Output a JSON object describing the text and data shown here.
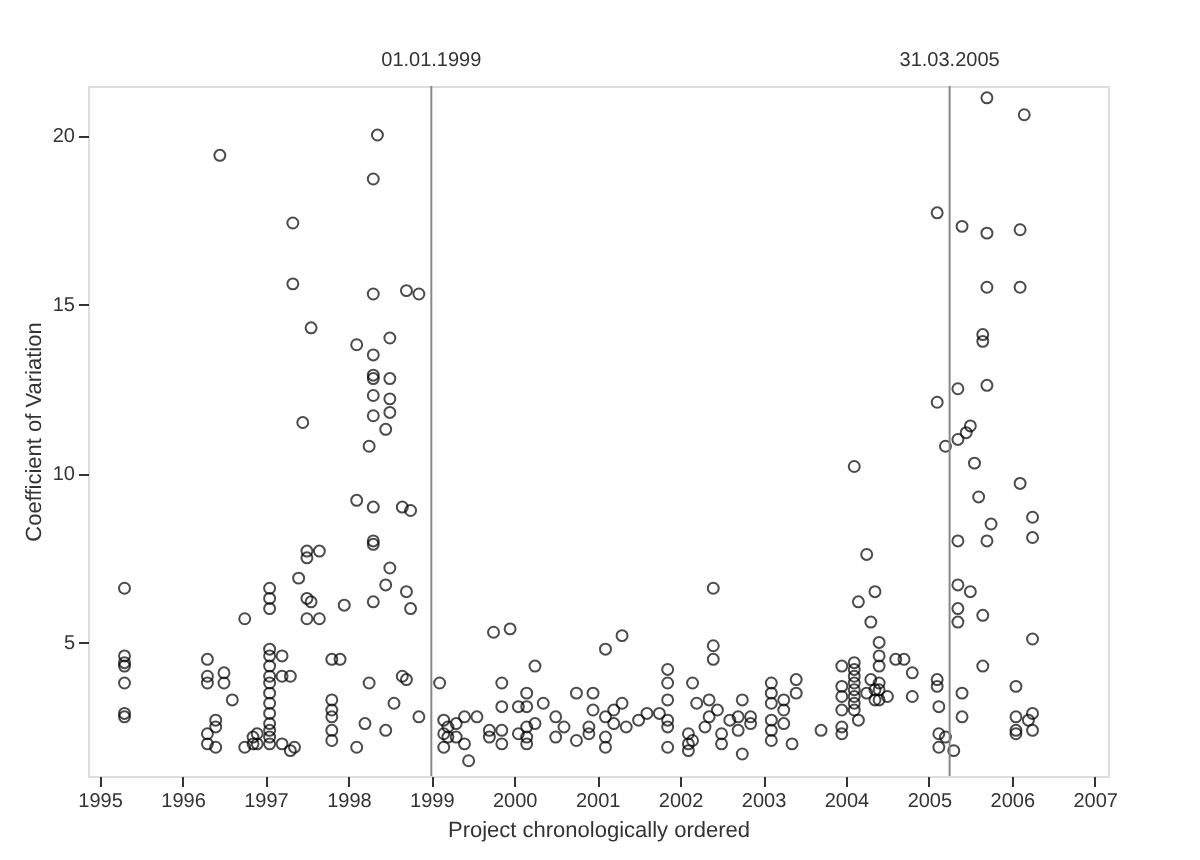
{
  "chart_data": {
    "type": "scatter",
    "xlabel": "Project chronologically ordered",
    "ylabel": "Coefficient of Variation",
    "xlim": [
      1994.86,
      2007.16
    ],
    "ylim": [
      1.05,
      21.45
    ],
    "xticks": [
      1995,
      1996,
      1997,
      1998,
      1999,
      2000,
      2001,
      2002,
      2003,
      2004,
      2005,
      2006,
      2007
    ],
    "yticks": [
      5,
      10,
      15,
      20
    ],
    "grid": false,
    "legend": false,
    "marker": "circle",
    "ref_lines": [
      {
        "axis": "x",
        "value": 1999.0,
        "label": "01.01.1999",
        "color": "#888888"
      },
      {
        "axis": "x",
        "value": 2005.25,
        "label": "31.03.2005",
        "color": "#888888"
      }
    ],
    "series": [
      {
        "color": "#000000",
        "x": [
          1995.3,
          1995.3,
          1995.3,
          1995.3,
          1995.3,
          1995.3,
          1995.3,
          1996.3,
          1996.3,
          1996.3,
          1996.3,
          1996.3,
          1996.4,
          1996.4,
          1996.4,
          1996.45,
          1996.5,
          1996.5,
          1996.6,
          1996.75,
          1996.75,
          1996.85,
          1996.85,
          1996.9,
          1996.9,
          1997.05,
          1997.05,
          1997.05,
          1997.05,
          1997.05,
          1997.05,
          1997.05,
          1997.05,
          1997.05,
          1997.05,
          1997.05,
          1997.05,
          1997.05,
          1997.05,
          1997.05,
          1997.2,
          1997.2,
          1997.2,
          1997.3,
          1997.3,
          1997.33,
          1997.33,
          1997.35,
          1997.4,
          1997.45,
          1997.5,
          1997.5,
          1997.5,
          1997.5,
          1997.55,
          1997.55,
          1997.65,
          1997.65,
          1997.8,
          1997.8,
          1997.8,
          1997.8,
          1997.8,
          1997.8,
          1997.9,
          1997.95,
          1998.1,
          1998.1,
          1998.1,
          1998.2,
          1998.25,
          1998.25,
          1998.3,
          1998.3,
          1998.3,
          1998.3,
          1998.3,
          1998.3,
          1998.3,
          1998.3,
          1998.3,
          1998.3,
          1998.3,
          1998.35,
          1998.45,
          1998.45,
          1998.45,
          1998.5,
          1998.5,
          1998.5,
          1998.5,
          1998.5,
          1998.55,
          1998.65,
          1998.65,
          1998.7,
          1998.7,
          1998.7,
          1998.75,
          1998.75,
          1998.85,
          1998.85,
          1999.1,
          1999.15,
          1999.15,
          1999.15,
          1999.2,
          1999.2,
          1999.3,
          1999.3,
          1999.4,
          1999.4,
          1999.45,
          1999.55,
          1999.7,
          1999.7,
          1999.75,
          1999.85,
          1999.85,
          1999.85,
          1999.85,
          1999.95,
          2000.05,
          2000.05,
          2000.15,
          2000.15,
          2000.15,
          2000.15,
          2000.15,
          2000.25,
          2000.25,
          2000.35,
          2000.5,
          2000.5,
          2000.6,
          2000.75,
          2000.75,
          2000.9,
          2000.9,
          2000.95,
          2000.95,
          2001.1,
          2001.1,
          2001.1,
          2001.1,
          2001.2,
          2001.2,
          2001.3,
          2001.3,
          2001.35,
          2001.5,
          2001.6,
          2001.75,
          2001.85,
          2001.85,
          2001.85,
          2001.85,
          2001.85,
          2001.85,
          2002.1,
          2002.1,
          2002.1,
          2002.15,
          2002.15,
          2002.2,
          2002.3,
          2002.35,
          2002.35,
          2002.4,
          2002.4,
          2002.4,
          2002.45,
          2002.5,
          2002.5,
          2002.6,
          2002.7,
          2002.7,
          2002.75,
          2002.75,
          2002.85,
          2002.85,
          2003.1,
          2003.1,
          2003.1,
          2003.1,
          2003.1,
          2003.1,
          2003.25,
          2003.25,
          2003.25,
          2003.35,
          2003.4,
          2003.4,
          2003.7,
          2003.95,
          2003.95,
          2003.95,
          2003.95,
          2003.95,
          2003.95,
          2004.1,
          2004.1,
          2004.1,
          2004.1,
          2004.1,
          2004.1,
          2004.1,
          2004.1,
          2004.1,
          2004.15,
          2004.15,
          2004.25,
          2004.25,
          2004.3,
          2004.3,
          2004.35,
          2004.35,
          2004.35,
          2004.4,
          2004.4,
          2004.4,
          2004.4,
          2004.4,
          2004.4,
          2004.5,
          2004.6,
          2004.7,
          2004.8,
          2004.8,
          2005.1,
          2005.1,
          2005.1,
          2005.1,
          2005.12,
          2005.12,
          2005.12,
          2005.2,
          2005.2,
          2005.3,
          2005.35,
          2005.35,
          2005.35,
          2005.35,
          2005.35,
          2005.35,
          2005.4,
          2005.4,
          2005.4,
          2005.45,
          2005.5,
          2005.5,
          2005.55,
          2005.6,
          2005.65,
          2005.65,
          2005.65,
          2005.65,
          2005.7,
          2005.7,
          2005.7,
          2005.7,
          2005.7,
          2005.75,
          2006.05,
          2006.05,
          2006.05,
          2006.05,
          2006.1,
          2006.1,
          2006.1,
          2006.15,
          2006.2,
          2006.25,
          2006.25,
          2006.25,
          2006.25,
          2006.25
        ],
        "values": [
          6.6,
          4.6,
          4.4,
          4.3,
          3.8,
          2.9,
          2.8,
          4.5,
          4.0,
          3.8,
          2.3,
          2.0,
          2.7,
          2.5,
          1.9,
          19.4,
          4.1,
          3.8,
          3.3,
          5.7,
          1.9,
          2.2,
          2.0,
          2.3,
          2.0,
          6.6,
          6.3,
          6.0,
          4.8,
          4.6,
          4.3,
          4.0,
          3.8,
          3.5,
          3.2,
          2.9,
          2.6,
          2.4,
          2.2,
          2.0,
          4.6,
          4.0,
          2.0,
          4.0,
          1.8,
          17.4,
          15.6,
          1.9,
          6.9,
          11.5,
          7.7,
          7.5,
          6.3,
          5.7,
          14.3,
          6.2,
          7.7,
          5.7,
          4.5,
          3.3,
          3.0,
          2.8,
          2.4,
          2.1,
          4.5,
          6.1,
          9.2,
          13.8,
          1.9,
          2.6,
          3.8,
          10.8,
          18.7,
          15.3,
          13.5,
          12.9,
          12.8,
          12.3,
          11.7,
          9.0,
          8.0,
          7.9,
          6.2,
          20.0,
          11.3,
          6.7,
          2.4,
          14.0,
          12.8,
          12.2,
          11.8,
          7.2,
          3.2,
          9.0,
          4.0,
          15.4,
          6.5,
          3.9,
          8.9,
          6.0,
          15.3,
          2.8,
          3.8,
          2.7,
          2.3,
          1.9,
          2.5,
          2.2,
          2.6,
          2.2,
          2.8,
          2.0,
          1.5,
          2.8,
          2.2,
          2.4,
          5.3,
          3.8,
          3.1,
          2.0,
          2.4,
          5.4,
          3.1,
          2.3,
          3.5,
          3.1,
          2.5,
          2.2,
          2.0,
          4.3,
          2.6,
          3.2,
          2.2,
          2.8,
          2.5,
          2.1,
          3.5,
          2.3,
          2.5,
          3.5,
          3.0,
          4.8,
          2.8,
          2.2,
          1.9,
          3.0,
          2.6,
          3.2,
          5.2,
          2.5,
          2.7,
          2.9,
          2.9,
          4.2,
          3.8,
          3.3,
          2.7,
          2.5,
          1.9,
          2.3,
          2.0,
          1.8,
          3.8,
          2.1,
          3.2,
          2.5,
          3.3,
          2.8,
          6.6,
          4.9,
          4.5,
          3.0,
          2.3,
          2.0,
          2.7,
          2.8,
          2.4,
          3.3,
          1.7,
          2.8,
          2.6,
          3.8,
          3.5,
          3.2,
          2.7,
          2.4,
          2.1,
          3.3,
          3.0,
          2.6,
          2.0,
          3.5,
          3.9,
          2.4,
          4.3,
          3.7,
          3.4,
          3.0,
          2.5,
          2.3,
          10.2,
          4.4,
          4.2,
          4.0,
          3.8,
          3.6,
          3.4,
          3.2,
          3.0,
          6.2,
          2.7,
          7.6,
          3.5,
          5.6,
          3.9,
          6.5,
          3.6,
          3.3,
          5.0,
          4.6,
          4.3,
          3.8,
          3.6,
          3.3,
          3.4,
          4.5,
          4.5,
          4.1,
          3.4,
          3.9,
          3.7,
          12.1,
          17.7,
          3.1,
          2.3,
          1.9,
          10.8,
          2.2,
          1.8,
          12.5,
          11.0,
          8.0,
          6.7,
          6.0,
          5.6,
          17.3,
          3.5,
          2.8,
          11.2,
          11.4,
          6.5,
          10.3,
          9.3,
          14.1,
          13.9,
          5.8,
          4.3,
          21.1,
          17.1,
          15.5,
          12.6,
          8.0,
          8.5,
          3.7,
          2.8,
          2.4,
          2.3,
          17.2,
          9.7,
          15.5,
          20.6,
          2.7,
          8.7,
          8.1,
          5.1,
          2.9,
          2.4
        ]
      }
    ]
  }
}
